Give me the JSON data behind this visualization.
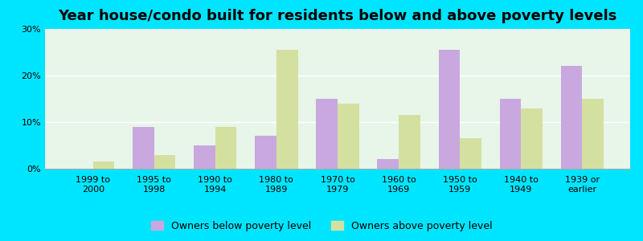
{
  "title": "Year house/condo built for residents below and above poverty levels",
  "categories": [
    "1999 to\n2000",
    "1995 to\n1998",
    "1990 to\n1994",
    "1980 to\n1989",
    "1970 to\n1979",
    "1960 to\n1969",
    "1950 to\n1959",
    "1940 to\n1949",
    "1939 or\nearlier"
  ],
  "below_poverty": [
    0.0,
    9.0,
    5.0,
    7.0,
    15.0,
    2.0,
    25.5,
    15.0,
    22.0
  ],
  "above_poverty": [
    1.5,
    3.0,
    9.0,
    25.5,
    14.0,
    11.5,
    6.5,
    13.0,
    15.0
  ],
  "below_color": "#c9a8e0",
  "above_color": "#d4e0a0",
  "background_color": "#e8f5e9",
  "outer_background": "#00e5ff",
  "ylim": [
    0,
    30
  ],
  "yticks": [
    0,
    10,
    20,
    30
  ],
  "ytick_labels": [
    "0%",
    "10%",
    "20%",
    "30%"
  ],
  "legend_below": "Owners below poverty level",
  "legend_above": "Owners above poverty level",
  "title_fontsize": 13,
  "tick_fontsize": 8,
  "legend_fontsize": 9
}
